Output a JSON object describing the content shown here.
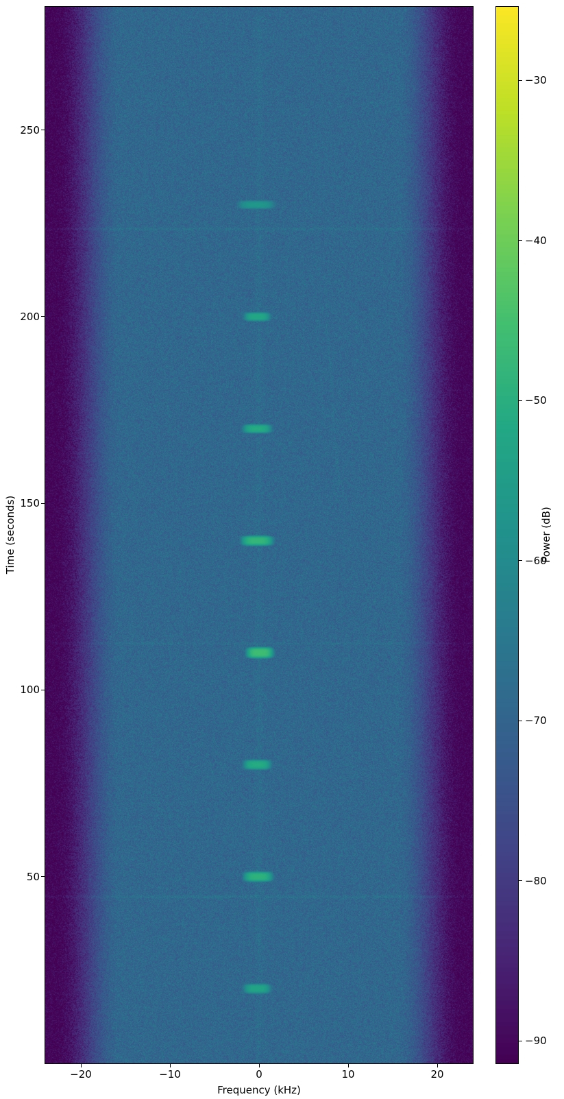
{
  "chart_data": {
    "type": "heatmap",
    "title": "",
    "xlabel": "Frequency (kHz)",
    "ylabel": "Time (seconds)",
    "colorbar_label": "Power (dB)",
    "xlim": [
      -24,
      24
    ],
    "ylim": [
      0,
      283
    ],
    "clim": [
      -91.4,
      -25.4
    ],
    "x_ticks": [
      {
        "value": -20,
        "label": "−20"
      },
      {
        "value": -10,
        "label": "−10"
      },
      {
        "value": 0,
        "label": "0"
      },
      {
        "value": 10,
        "label": "10"
      },
      {
        "value": 20,
        "label": "20"
      }
    ],
    "y_ticks": [
      {
        "value": 50,
        "label": "50"
      },
      {
        "value": 100,
        "label": "100"
      },
      {
        "value": 150,
        "label": "150"
      },
      {
        "value": 200,
        "label": "200"
      },
      {
        "value": 250,
        "label": "250"
      }
    ],
    "colorbar_ticks": [
      {
        "value": -30,
        "label": "−30"
      },
      {
        "value": -40,
        "label": "−40"
      },
      {
        "value": -50,
        "label": "−50"
      },
      {
        "value": -60,
        "label": "−60"
      },
      {
        "value": -70,
        "label": "−70"
      },
      {
        "value": -80,
        "label": "−80"
      },
      {
        "value": -90,
        "label": "−90"
      }
    ],
    "colormap": "viridis",
    "colormap_stops": [
      "#440154",
      "#482475",
      "#414487",
      "#355f8d",
      "#2a788e",
      "#21918c",
      "#22a884",
      "#44bf70",
      "#7ad151",
      "#bddf26",
      "#fde725"
    ],
    "noise": {
      "passband_level_db": -69,
      "edge_level_db": -91,
      "rolloff_start_khz": 15.5,
      "rolloff_end_khz": 23.0,
      "speckle_db": 6.5,
      "center_spike_boost_db": 1.2,
      "center_spike_sigma_khz": 0.25
    },
    "bursts": [
      {
        "time_s": 20,
        "freq_khz": -0.2,
        "peak_db": -53,
        "half_width_khz": 1.15,
        "half_duration_s": 1.0
      },
      {
        "time_s": 50,
        "freq_khz": -0.1,
        "peak_db": -49,
        "half_width_khz": 1.2,
        "half_duration_s": 1.0
      },
      {
        "time_s": 80,
        "freq_khz": -0.2,
        "peak_db": -51,
        "half_width_khz": 1.15,
        "half_duration_s": 1.0
      },
      {
        "time_s": 110,
        "freq_khz": 0.1,
        "peak_db": -46,
        "half_width_khz": 1.1,
        "half_duration_s": 1.1
      },
      {
        "time_s": 140,
        "freq_khz": -0.2,
        "peak_db": -48,
        "half_width_khz": 1.3,
        "half_duration_s": 1.0
      },
      {
        "time_s": 170,
        "freq_khz": -0.2,
        "peak_db": -51,
        "half_width_khz": 1.2,
        "half_duration_s": 0.9
      },
      {
        "time_s": 200,
        "freq_khz": -0.2,
        "peak_db": -52,
        "half_width_khz": 1.1,
        "half_duration_s": 0.9
      },
      {
        "time_s": 230,
        "freq_khz": -0.3,
        "peak_db": -57,
        "half_width_khz": 1.6,
        "half_duration_s": 0.9
      }
    ],
    "artifacts": {
      "horizontal_lines": [
        {
          "time_s": 223.5,
          "boost_db": 1.8
        },
        {
          "time_s": 112.5,
          "boost_db": 1.5
        },
        {
          "time_s": 44.7,
          "boost_db": 2.0
        }
      ],
      "diagonal_lines": [
        {
          "t0_s": 198,
          "f0_khz": 7.6,
          "t1_s": 155,
          "f1_khz": 8.9,
          "boost_db": 1.4
        }
      ]
    }
  }
}
